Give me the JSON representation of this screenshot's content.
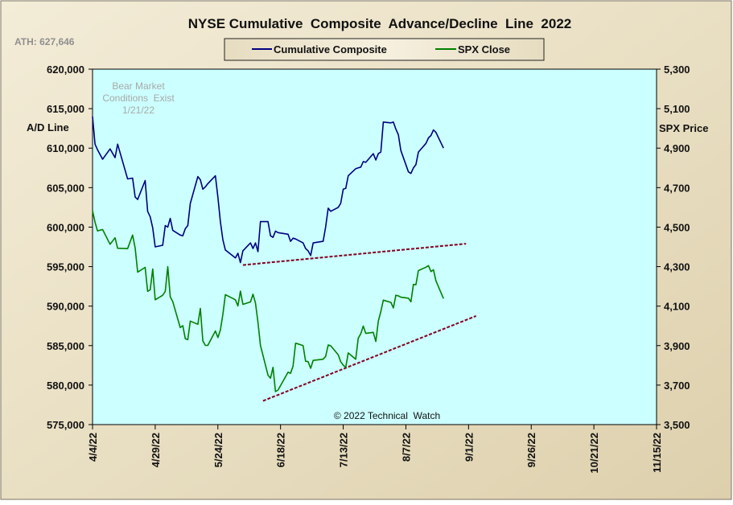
{
  "chart_data": {
    "type": "line",
    "title": "NYSE Cumulative  Composite  Advance/Decline  Line  2022",
    "ath_label": "ATH: 627,646",
    "annotation_lines": [
      "Bear Market",
      "Conditions  Exist",
      "1/21/22"
    ],
    "copyright": "© 2022 Technical  Watch",
    "ylabel_left": "A/D Line",
    "ylabel_right": "SPX Price",
    "ylim_left": [
      575000,
      620000
    ],
    "ylim_right": [
      3500,
      5300
    ],
    "x_tick_labels": [
      "4/4/22",
      "4/29/22",
      "5/24/22",
      "6/18/22",
      "7/13/22",
      "8/7/22",
      "9/1/22",
      "9/26/22",
      "10/21/22",
      "11/15/22"
    ],
    "y_left_tick_labels": [
      "575,000",
      "580,000",
      "585,000",
      "590,000",
      "595,000",
      "600,000",
      "605,000",
      "610,000",
      "615,000",
      "620,000"
    ],
    "y_right_tick_labels": [
      "3,500",
      "3,700",
      "3,900",
      "4,100",
      "4,300",
      "4,500",
      "4,700",
      "4,900",
      "5,100",
      "5,300"
    ],
    "colors": {
      "background": "#ece3c9",
      "plot_background": "#ccffff",
      "composite": "#000080",
      "spx": "#008000",
      "trendline": "#800020"
    },
    "legend": {
      "placement": "top-center",
      "entries": [
        "Cumulative Composite",
        "SPX Close"
      ]
    },
    "series": [
      {
        "name": "Cumulative Composite",
        "axis": "left",
        "color": "#000080",
        "x": [
          "2022-04-04",
          "2022-04-05",
          "2022-04-06",
          "2022-04-08",
          "2022-04-11",
          "2022-04-13",
          "2022-04-14",
          "2022-04-18",
          "2022-04-20",
          "2022-04-21",
          "2022-04-22",
          "2022-04-25",
          "2022-04-26",
          "2022-04-27",
          "2022-04-28",
          "2022-04-29",
          "2022-05-02",
          "2022-05-03",
          "2022-05-04",
          "2022-05-05",
          "2022-05-06",
          "2022-05-09",
          "2022-05-10",
          "2022-05-11",
          "2022-05-12",
          "2022-05-13",
          "2022-05-16",
          "2022-05-17",
          "2022-05-18",
          "2022-05-19",
          "2022-05-20",
          "2022-05-23",
          "2022-05-24",
          "2022-05-25",
          "2022-05-26",
          "2022-05-27",
          "2022-05-31",
          "2022-06-01",
          "2022-06-02",
          "2022-06-03",
          "2022-06-06",
          "2022-06-07",
          "2022-06-08",
          "2022-06-09",
          "2022-06-10",
          "2022-06-13",
          "2022-06-14",
          "2022-06-15",
          "2022-06-16",
          "2022-06-17",
          "2022-06-21",
          "2022-06-22",
          "2022-06-23",
          "2022-06-24",
          "2022-06-27",
          "2022-06-28",
          "2022-06-29",
          "2022-06-30",
          "2022-07-01",
          "2022-07-05",
          "2022-07-06",
          "2022-07-07",
          "2022-07-08",
          "2022-07-11",
          "2022-07-12",
          "2022-07-13",
          "2022-07-14",
          "2022-07-15",
          "2022-07-18",
          "2022-07-19",
          "2022-07-20",
          "2022-07-21",
          "2022-07-22",
          "2022-07-25",
          "2022-07-26",
          "2022-07-27",
          "2022-07-28",
          "2022-07-29",
          "2022-08-01",
          "2022-08-02",
          "2022-08-03",
          "2022-08-04",
          "2022-08-05",
          "2022-08-08",
          "2022-08-09",
          "2022-08-10",
          "2022-08-11",
          "2022-08-12",
          "2022-08-15",
          "2022-08-16",
          "2022-08-17",
          "2022-08-18",
          "2022-08-19",
          "2022-08-22"
        ],
        "values": [
          614000,
          610500,
          609800,
          608600,
          609900,
          608800,
          610500,
          606100,
          606200,
          603800,
          603500,
          605900,
          602000,
          601300,
          599900,
          597500,
          597700,
          600200,
          600000,
          601100,
          599600,
          599000,
          598900,
          599800,
          600200,
          603000,
          606400,
          606000,
          604800,
          605100,
          605500,
          606500,
          603800,
          600700,
          598400,
          597100,
          596100,
          596700,
          595500,
          597000,
          598000,
          597300,
          598000,
          596900,
          600700,
          600700,
          598900,
          598700,
          599500,
          599300,
          599100,
          598200,
          598600,
          598500,
          598000,
          597300,
          597000,
          596400,
          598000,
          598200,
          600000,
          602400,
          602000,
          602500,
          603000,
          604800,
          604900,
          606500,
          607400,
          607500,
          607600,
          608300,
          608200,
          609300,
          608500,
          609300,
          609500,
          613300,
          613200,
          613300,
          612400,
          611700,
          609700,
          607000,
          606800,
          607500,
          607900,
          609500,
          610600,
          611300,
          611600,
          612300,
          612000,
          610000
        ]
      },
      {
        "name": "SPX Close",
        "axis": "right",
        "color": "#008000",
        "x": [
          "2022-04-04",
          "2022-04-05",
          "2022-04-06",
          "2022-04-08",
          "2022-04-11",
          "2022-04-13",
          "2022-04-14",
          "2022-04-18",
          "2022-04-20",
          "2022-04-21",
          "2022-04-22",
          "2022-04-25",
          "2022-04-26",
          "2022-04-27",
          "2022-04-28",
          "2022-04-29",
          "2022-05-02",
          "2022-05-03",
          "2022-05-04",
          "2022-05-05",
          "2022-05-06",
          "2022-05-09",
          "2022-05-10",
          "2022-05-11",
          "2022-05-12",
          "2022-05-13",
          "2022-05-16",
          "2022-05-17",
          "2022-05-18",
          "2022-05-19",
          "2022-05-20",
          "2022-05-23",
          "2022-05-24",
          "2022-05-25",
          "2022-05-26",
          "2022-05-27",
          "2022-05-31",
          "2022-06-01",
          "2022-06-02",
          "2022-06-03",
          "2022-06-06",
          "2022-06-07",
          "2022-06-08",
          "2022-06-09",
          "2022-06-10",
          "2022-06-13",
          "2022-06-14",
          "2022-06-15",
          "2022-06-16",
          "2022-06-17",
          "2022-06-21",
          "2022-06-22",
          "2022-06-23",
          "2022-06-24",
          "2022-06-27",
          "2022-06-28",
          "2022-06-29",
          "2022-06-30",
          "2022-07-01",
          "2022-07-05",
          "2022-07-06",
          "2022-07-07",
          "2022-07-08",
          "2022-07-11",
          "2022-07-12",
          "2022-07-13",
          "2022-07-14",
          "2022-07-15",
          "2022-07-18",
          "2022-07-19",
          "2022-07-20",
          "2022-07-21",
          "2022-07-22",
          "2022-07-25",
          "2022-07-26",
          "2022-07-27",
          "2022-07-28",
          "2022-07-29",
          "2022-08-01",
          "2022-08-02",
          "2022-08-03",
          "2022-08-04",
          "2022-08-05",
          "2022-08-08",
          "2022-08-09",
          "2022-08-10",
          "2022-08-11",
          "2022-08-12",
          "2022-08-15",
          "2022-08-16",
          "2022-08-17",
          "2022-08-18",
          "2022-08-19",
          "2022-08-22"
        ],
        "values": [
          4583,
          4525,
          4481,
          4488,
          4413,
          4446,
          4393,
          4391,
          4460,
          4394,
          4272,
          4296,
          4175,
          4183,
          4288,
          4132,
          4155,
          4175,
          4300,
          4147,
          4123,
          3991,
          4001,
          3935,
          3930,
          4024,
          4008,
          4088,
          3924,
          3901,
          3901,
          3974,
          3941,
          3979,
          4058,
          4158,
          4132,
          4101,
          4176,
          4109,
          4121,
          4160,
          4116,
          4018,
          3901,
          3750,
          3735,
          3790,
          3667,
          3675,
          3765,
          3760,
          3796,
          3912,
          3900,
          3821,
          3819,
          3785,
          3825,
          3831,
          3845,
          3903,
          3899,
          3854,
          3819,
          3801,
          3790,
          3863,
          3831,
          3937,
          3960,
          3999,
          3962,
          3967,
          3921,
          4024,
          4072,
          4130,
          4119,
          4091,
          4155,
          4152,
          4145,
          4140,
          4122,
          4210,
          4208,
          4280,
          4297,
          4305,
          4275,
          4284,
          4228,
          4138
        ]
      }
    ],
    "trendlines": [
      {
        "axis": "left",
        "from": {
          "x": "2022-06-03",
          "y": 595200
        },
        "to": {
          "x": "2022-08-31",
          "y": 597900
        }
      },
      {
        "axis": "right",
        "from": {
          "x": "2022-06-11",
          "y": 3620
        },
        "to": {
          "x": "2022-09-04",
          "y": 4050
        }
      }
    ]
  }
}
